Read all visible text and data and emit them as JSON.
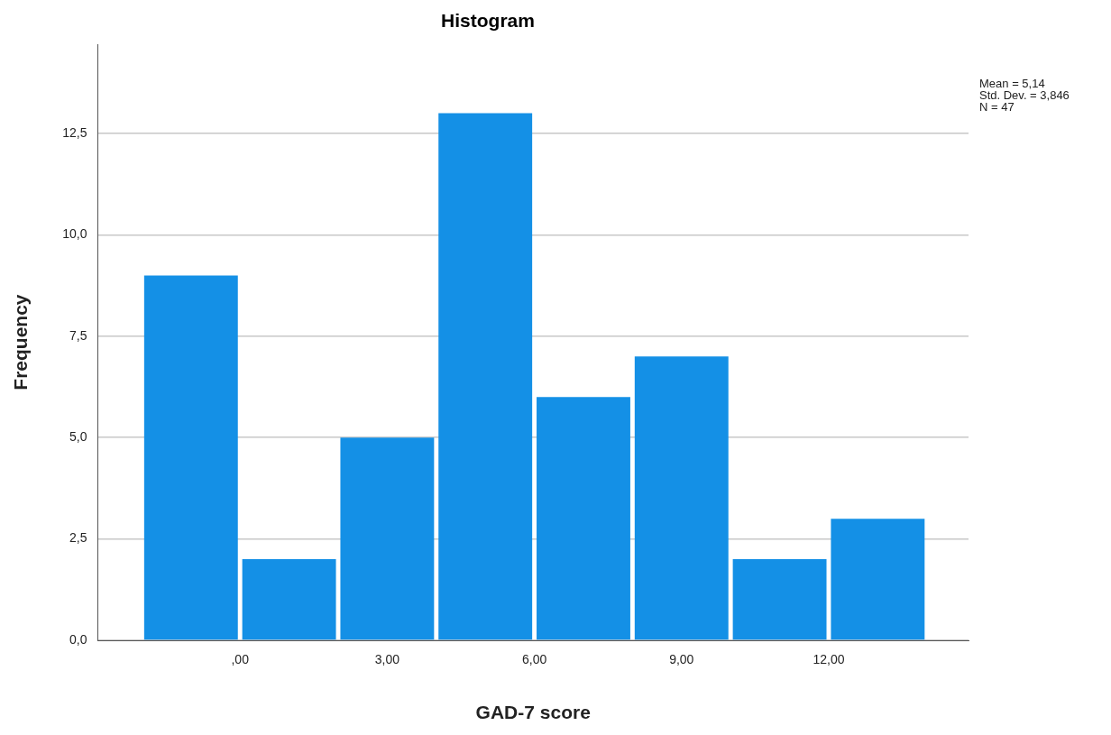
{
  "chart_data": {
    "type": "histogram",
    "title": "Histogram",
    "xlabel": "GAD-7 score",
    "ylabel": "Frequency",
    "bins": [
      -2,
      0,
      2,
      4,
      6,
      8,
      10,
      12,
      14
    ],
    "values": [
      9,
      2,
      5,
      13,
      6,
      7,
      2,
      3
    ],
    "color": "#1490e6",
    "xlim": [
      -2.9,
      14.85
    ],
    "xticks": [
      {
        "value": 0,
        "label": ",00"
      },
      {
        "value": 3,
        "label": "3,00"
      },
      {
        "value": 6,
        "label": "6,00"
      },
      {
        "value": 9,
        "label": "9,00"
      },
      {
        "value": 12,
        "label": "12,00"
      }
    ],
    "ylim": [
      0,
      14.7
    ],
    "yticks": [
      {
        "value": 0,
        "label": "0,0"
      },
      {
        "value": 2.5,
        "label": "2,5"
      },
      {
        "value": 5,
        "label": "5,0"
      },
      {
        "value": 7.5,
        "label": "7,5"
      },
      {
        "value": 10,
        "label": "10,0"
      },
      {
        "value": 12.5,
        "label": "12,5"
      }
    ],
    "grid": "y",
    "legend": false,
    "annotations": [
      "Mean = 5,14",
      "Std. Dev. = 3,846",
      "N = 47"
    ]
  }
}
